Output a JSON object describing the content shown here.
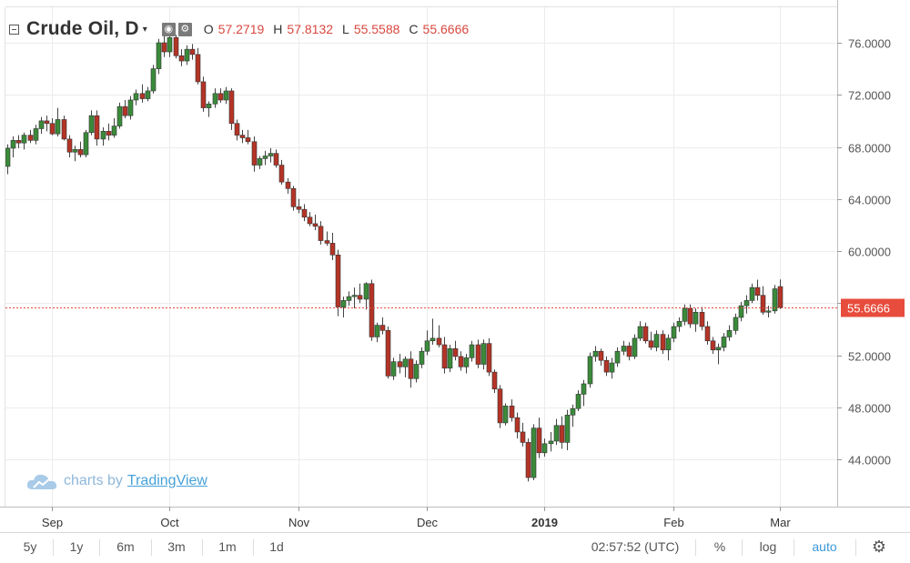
{
  "legend": {
    "symbol": "Crude Oil, D",
    "caret": "▾",
    "eye_icon": "eye-icon",
    "gear_icon": "gear-icon",
    "o_label": "O",
    "o_value": "57.2719",
    "h_label": "H",
    "h_value": "57.8132",
    "l_label": "L",
    "l_value": "55.5588",
    "c_label": "C",
    "c_value": "55.6666"
  },
  "watermark": {
    "prefix": "charts by",
    "brand": "TradingView"
  },
  "toolbar": {
    "ranges": [
      "5y",
      "1y",
      "6m",
      "3m",
      "1m",
      "1d"
    ],
    "time": "02:57:52 (UTC)",
    "percent": "%",
    "log": "log",
    "auto": "auto",
    "settings_icon": "gear-icon"
  },
  "colors": {
    "up": "#53b987",
    "down": "#eb4d5c",
    "up_body": "#3a8a3a",
    "down_body": "#b43426",
    "accent": "#3b99d8",
    "last_price": "#e74c3c"
  },
  "chart_data": {
    "type": "candlestick",
    "title": "Crude Oil, D",
    "ylim": [
      41,
      79
    ],
    "y_ticks": [
      "76.0000",
      "72.0000",
      "68.0000",
      "64.0000",
      "60.0000",
      "56.0000",
      "52.0000",
      "48.0000",
      "44.0000"
    ],
    "x_ticks": [
      {
        "label": "Sep",
        "index": 8,
        "bold": false
      },
      {
        "label": "Oct",
        "index": 29,
        "bold": false
      },
      {
        "label": "Nov",
        "index": 52,
        "bold": false
      },
      {
        "label": "Dec",
        "index": 75,
        "bold": false
      },
      {
        "label": "2019",
        "index": 96,
        "bold": true
      },
      {
        "label": "Feb",
        "index": 119,
        "bold": false
      },
      {
        "label": "Mar",
        "index": 138,
        "bold": false
      }
    ],
    "last_price": "55.6666",
    "grid": true,
    "candles": [
      [
        66.5,
        68.2,
        65.9,
        67.9
      ],
      [
        67.9,
        68.8,
        67.2,
        68.5
      ],
      [
        68.5,
        68.9,
        67.9,
        68.3
      ],
      [
        68.3,
        69.1,
        67.8,
        68.9
      ],
      [
        68.9,
        69.3,
        68.3,
        68.5
      ],
      [
        68.5,
        69.7,
        68.2,
        69.4
      ],
      [
        69.4,
        70.3,
        69.0,
        70.0
      ],
      [
        70.0,
        70.4,
        69.2,
        69.8
      ],
      [
        69.8,
        70.2,
        68.9,
        69.0
      ],
      [
        69.0,
        71.0,
        68.8,
        70.1
      ],
      [
        70.1,
        70.4,
        68.5,
        68.6
      ],
      [
        68.6,
        68.9,
        67.2,
        67.6
      ],
      [
        67.6,
        68.1,
        66.9,
        67.8
      ],
      [
        67.8,
        68.4,
        67.2,
        67.4
      ],
      [
        67.4,
        69.3,
        67.2,
        69.1
      ],
      [
        69.1,
        70.8,
        68.9,
        70.4
      ],
      [
        70.4,
        70.8,
        68.1,
        68.6
      ],
      [
        68.6,
        69.5,
        68.1,
        69.2
      ],
      [
        69.2,
        69.8,
        68.5,
        68.9
      ],
      [
        68.9,
        70.2,
        68.7,
        69.6
      ],
      [
        69.6,
        71.4,
        69.4,
        71.1
      ],
      [
        71.1,
        71.6,
        70.2,
        70.4
      ],
      [
        70.4,
        71.9,
        70.1,
        71.6
      ],
      [
        71.6,
        72.4,
        71.2,
        72.1
      ],
      [
        72.1,
        72.8,
        71.4,
        71.7
      ],
      [
        71.7,
        72.6,
        71.5,
        72.3
      ],
      [
        72.3,
        74.3,
        72.1,
        74.0
      ],
      [
        74.0,
        76.3,
        73.6,
        76.0
      ],
      [
        76.0,
        76.8,
        74.9,
        75.3
      ],
      [
        75.3,
        76.7,
        74.9,
        76.4
      ],
      [
        76.4,
        76.6,
        74.8,
        75.0
      ],
      [
        75.0,
        75.5,
        74.2,
        74.6
      ],
      [
        74.6,
        75.8,
        74.3,
        75.5
      ],
      [
        75.5,
        75.9,
        74.7,
        75.1
      ],
      [
        75.1,
        75.6,
        72.8,
        73.0
      ],
      [
        73.0,
        73.4,
        70.7,
        71.0
      ],
      [
        71.0,
        71.5,
        70.3,
        71.3
      ],
      [
        71.3,
        72.5,
        71.0,
        72.1
      ],
      [
        72.1,
        72.5,
        71.4,
        71.6
      ],
      [
        71.6,
        72.6,
        71.3,
        72.3
      ],
      [
        72.3,
        72.5,
        69.3,
        69.8
      ],
      [
        69.8,
        70.1,
        68.5,
        68.9
      ],
      [
        68.9,
        69.3,
        68.3,
        68.7
      ],
      [
        68.7,
        69.3,
        68.2,
        68.4
      ],
      [
        68.4,
        68.8,
        66.1,
        66.6
      ],
      [
        66.6,
        67.3,
        66.3,
        67.1
      ],
      [
        67.1,
        67.7,
        66.6,
        67.3
      ],
      [
        67.3,
        67.9,
        66.8,
        67.5
      ],
      [
        67.5,
        67.8,
        66.4,
        66.6
      ],
      [
        66.6,
        67.0,
        65.1,
        65.3
      ],
      [
        65.3,
        65.6,
        64.4,
        64.8
      ],
      [
        64.8,
        65.0,
        63.1,
        63.4
      ],
      [
        63.4,
        64.0,
        62.9,
        63.2
      ],
      [
        63.2,
        63.6,
        62.3,
        62.6
      ],
      [
        62.6,
        63.0,
        61.9,
        62.1
      ],
      [
        62.1,
        62.8,
        61.6,
        61.9
      ],
      [
        61.9,
        62.3,
        60.5,
        60.8
      ],
      [
        60.8,
        61.5,
        60.4,
        60.6
      ],
      [
        60.6,
        61.4,
        59.3,
        59.7
      ],
      [
        59.7,
        60.1,
        55.0,
        55.7
      ],
      [
        55.7,
        56.5,
        54.9,
        56.2
      ],
      [
        56.2,
        56.9,
        55.8,
        56.5
      ],
      [
        56.5,
        57.2,
        55.6,
        56.6
      ],
      [
        56.6,
        57.5,
        56.0,
        56.3
      ],
      [
        56.3,
        57.6,
        55.5,
        57.5
      ],
      [
        57.5,
        57.8,
        53.1,
        53.4
      ],
      [
        53.4,
        54.5,
        53.0,
        54.3
      ],
      [
        54.3,
        54.9,
        53.6,
        53.9
      ],
      [
        53.9,
        54.2,
        50.2,
        50.4
      ],
      [
        50.4,
        51.8,
        50.1,
        51.5
      ],
      [
        51.5,
        52.1,
        50.6,
        51.1
      ],
      [
        51.1,
        51.9,
        50.3,
        51.7
      ],
      [
        51.7,
        52.3,
        49.5,
        50.2
      ],
      [
        50.2,
        51.6,
        49.9,
        51.3
      ],
      [
        51.3,
        52.6,
        51.0,
        52.3
      ],
      [
        52.3,
        53.9,
        52.0,
        53.1
      ],
      [
        53.1,
        54.8,
        52.8,
        53.3
      ],
      [
        53.3,
        54.3,
        52.6,
        52.8
      ],
      [
        52.8,
        53.4,
        50.6,
        51.0
      ],
      [
        51.0,
        52.8,
        50.7,
        52.5
      ],
      [
        52.5,
        53.1,
        51.6,
        51.9
      ],
      [
        51.9,
        52.3,
        50.8,
        51.1
      ],
      [
        51.1,
        52.1,
        50.6,
        51.8
      ],
      [
        51.8,
        53.1,
        51.5,
        52.8
      ],
      [
        52.8,
        53.2,
        51.0,
        51.3
      ],
      [
        51.3,
        53.2,
        50.9,
        52.9
      ],
      [
        52.9,
        53.3,
        50.4,
        50.7
      ],
      [
        50.7,
        50.9,
        49.1,
        49.4
      ],
      [
        49.4,
        49.7,
        46.4,
        46.8
      ],
      [
        46.8,
        48.3,
        46.6,
        48.1
      ],
      [
        48.1,
        48.6,
        46.9,
        47.2
      ],
      [
        47.2,
        47.6,
        45.6,
        46.1
      ],
      [
        46.1,
        46.8,
        45.0,
        45.3
      ],
      [
        45.3,
        45.6,
        42.3,
        42.6
      ],
      [
        42.6,
        46.7,
        42.4,
        46.4
      ],
      [
        46.4,
        47.2,
        44.1,
        44.5
      ],
      [
        44.5,
        45.6,
        44.2,
        45.2
      ],
      [
        45.2,
        46.1,
        44.6,
        45.4
      ],
      [
        45.4,
        47.1,
        45.1,
        46.6
      ],
      [
        46.6,
        47.3,
        44.8,
        45.3
      ],
      [
        45.3,
        47.8,
        44.7,
        47.4
      ],
      [
        47.4,
        48.2,
        46.5,
        47.9
      ],
      [
        47.9,
        49.3,
        47.7,
        49.0
      ],
      [
        49.0,
        50.1,
        48.1,
        49.8
      ],
      [
        49.8,
        52.2,
        49.5,
        51.9
      ],
      [
        51.9,
        52.7,
        51.5,
        52.3
      ],
      [
        52.3,
        52.5,
        51.2,
        51.6
      ],
      [
        51.6,
        51.9,
        50.4,
        50.7
      ],
      [
        50.7,
        51.8,
        50.2,
        51.4
      ],
      [
        51.4,
        52.6,
        51.1,
        52.3
      ],
      [
        52.3,
        53.1,
        52.0,
        52.7
      ],
      [
        52.7,
        53.0,
        51.6,
        51.9
      ],
      [
        51.9,
        53.6,
        51.7,
        53.3
      ],
      [
        53.3,
        54.6,
        53.1,
        54.2
      ],
      [
        54.2,
        54.5,
        52.9,
        53.1
      ],
      [
        53.1,
        53.8,
        52.4,
        52.6
      ],
      [
        52.6,
        53.9,
        52.3,
        53.6
      ],
      [
        53.6,
        53.9,
        52.1,
        52.4
      ],
      [
        52.4,
        53.6,
        51.6,
        53.3
      ],
      [
        53.3,
        54.5,
        53.0,
        54.2
      ],
      [
        54.2,
        54.9,
        53.8,
        54.6
      ],
      [
        54.6,
        55.9,
        54.3,
        55.6
      ],
      [
        55.6,
        55.9,
        54.1,
        54.4
      ],
      [
        54.4,
        55.6,
        53.8,
        55.3
      ],
      [
        55.3,
        55.7,
        53.9,
        54.2
      ],
      [
        54.2,
        54.6,
        52.8,
        53.1
      ],
      [
        53.1,
        53.4,
        52.1,
        52.4
      ],
      [
        52.4,
        52.9,
        51.3,
        52.6
      ],
      [
        52.6,
        53.7,
        52.3,
        53.4
      ],
      [
        53.4,
        54.3,
        53.1,
        53.9
      ],
      [
        53.9,
        55.2,
        53.6,
        54.9
      ],
      [
        54.9,
        56.1,
        54.6,
        55.8
      ],
      [
        55.8,
        56.6,
        55.2,
        56.2
      ],
      [
        56.2,
        57.5,
        56.0,
        57.2
      ],
      [
        57.2,
        57.8,
        56.2,
        56.6
      ],
      [
        56.6,
        57.3,
        55.1,
        55.3
      ],
      [
        55.3,
        55.8,
        54.9,
        55.4
      ],
      [
        55.4,
        57.4,
        55.2,
        57.1
      ],
      [
        57.2719,
        57.8132,
        55.5588,
        55.6666
      ]
    ]
  }
}
